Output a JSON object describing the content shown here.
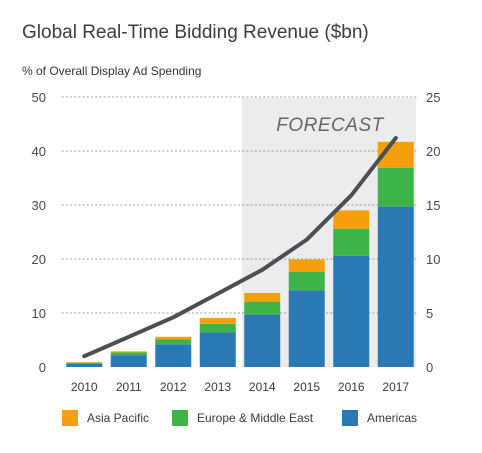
{
  "title": "Global Real-Time Bidding Revenue ($bn)",
  "subtitle": "% of Overall Display Ad Spending",
  "forecast_label": "FORECAST",
  "colors": {
    "americas": "#2b79b4",
    "europe": "#3db34a",
    "asia": "#f59f0c",
    "line": "#4a4f54",
    "forecast_bg": "#ececec",
    "grid": "#9a9a9a"
  },
  "legend": [
    {
      "label": "Asia Pacific",
      "color": "#f59f0c"
    },
    {
      "label": "Europe & Middle East",
      "color": "#3db34a"
    },
    {
      "label": "Americas",
      "color": "#2b79b4"
    }
  ],
  "chart_data": {
    "type": "bar",
    "stacked": true,
    "categories": [
      "2010",
      "2011",
      "2012",
      "2013",
      "2014",
      "2015",
      "2016",
      "2017"
    ],
    "series": [
      {
        "name": "Americas",
        "values": [
          0.6,
          2.2,
          4.2,
          6.4,
          9.7,
          14.2,
          20.6,
          29.7
        ]
      },
      {
        "name": "Europe & Middle East",
        "values": [
          0.2,
          0.5,
          0.9,
          1.6,
          2.4,
          3.4,
          5.0,
          7.2
        ]
      },
      {
        "name": "Asia Pacific",
        "values": [
          0.1,
          0.2,
          0.5,
          1.1,
          1.6,
          2.3,
          3.4,
          4.8
        ]
      }
    ],
    "line": {
      "values": [
        1.0,
        2.8,
        4.6,
        6.8,
        9.0,
        11.8,
        15.9,
        21.2
      ],
      "axis": "right"
    },
    "ylim_left": [
      0,
      50
    ],
    "ylim_right": [
      0,
      25
    ],
    "yticks_left": [
      "0",
      "10",
      "20",
      "30",
      "40",
      "50"
    ],
    "yticks_right": [
      "0",
      "5",
      "10",
      "15",
      "20",
      "25"
    ],
    "forecast_from": "2014",
    "grid": true,
    "legend_position": "bottom"
  }
}
